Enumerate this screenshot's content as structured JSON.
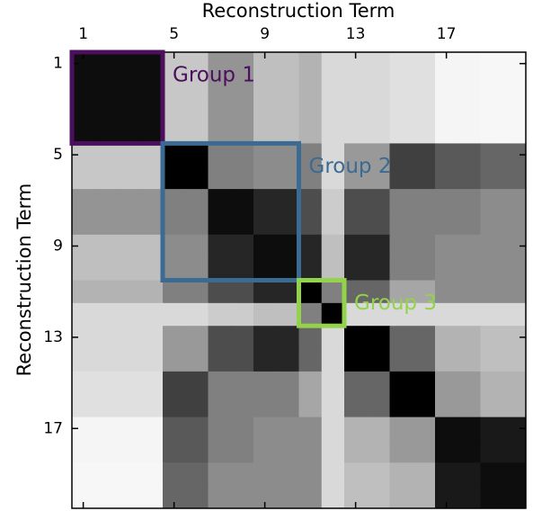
{
  "chart_data": {
    "type": "heatmap",
    "xlabel": "Reconstruction Term",
    "ylabel": "Reconstruction Term",
    "xlim": [
      0.5,
      20.5
    ],
    "ylim": [
      0.5,
      20.5
    ],
    "xticks": [
      1,
      5,
      9,
      13,
      17
    ],
    "yticks": [
      1,
      5,
      9,
      13,
      17
    ],
    "colormap": "gray_r",
    "groups": [
      {
        "label": "Group 1",
        "start": 1,
        "end": 4,
        "color": "#4b0f5e"
      },
      {
        "label": "Group 2",
        "start": 5,
        "end": 10,
        "color": "#3b6a92"
      },
      {
        "label": "Group 3",
        "start": 11,
        "end": 12,
        "color": "#93d34c"
      }
    ],
    "values": [
      [
        0.95,
        0.95,
        0.95,
        0.95,
        0.22,
        0.22,
        0.42,
        0.42,
        0.25,
        0.25,
        0.3,
        0.15,
        0.15,
        0.15,
        0.12,
        0.12,
        0.04,
        0.04,
        0.03,
        0.03
      ],
      [
        0.95,
        0.95,
        0.95,
        0.95,
        0.22,
        0.22,
        0.42,
        0.42,
        0.25,
        0.25,
        0.3,
        0.15,
        0.15,
        0.15,
        0.12,
        0.12,
        0.04,
        0.04,
        0.03,
        0.03
      ],
      [
        0.95,
        0.95,
        0.95,
        0.95,
        0.22,
        0.22,
        0.42,
        0.42,
        0.25,
        0.25,
        0.3,
        0.15,
        0.15,
        0.15,
        0.12,
        0.12,
        0.04,
        0.04,
        0.03,
        0.03
      ],
      [
        0.95,
        0.95,
        0.95,
        0.95,
        0.22,
        0.22,
        0.42,
        0.42,
        0.25,
        0.25,
        0.3,
        0.15,
        0.15,
        0.15,
        0.12,
        0.12,
        0.04,
        0.04,
        0.03,
        0.03
      ],
      [
        0.22,
        0.22,
        0.22,
        0.22,
        1,
        1,
        0.5,
        0.5,
        0.45,
        0.45,
        0.5,
        0.15,
        0.4,
        0.4,
        0.75,
        0.75,
        0.65,
        0.65,
        0.6,
        0.6
      ],
      [
        0.22,
        0.22,
        0.22,
        0.22,
        1,
        1,
        0.5,
        0.5,
        0.45,
        0.45,
        0.5,
        0.15,
        0.4,
        0.4,
        0.75,
        0.75,
        0.65,
        0.65,
        0.6,
        0.6
      ],
      [
        0.42,
        0.42,
        0.42,
        0.42,
        0.5,
        0.5,
        0.95,
        0.95,
        0.85,
        0.85,
        0.7,
        0.2,
        0.7,
        0.7,
        0.5,
        0.5,
        0.5,
        0.5,
        0.45,
        0.45
      ],
      [
        0.42,
        0.42,
        0.42,
        0.42,
        0.5,
        0.5,
        0.95,
        0.95,
        0.85,
        0.85,
        0.7,
        0.2,
        0.7,
        0.7,
        0.5,
        0.5,
        0.5,
        0.5,
        0.45,
        0.45
      ],
      [
        0.25,
        0.25,
        0.25,
        0.25,
        0.45,
        0.45,
        0.85,
        0.85,
        0.95,
        0.95,
        0.85,
        0.25,
        0.85,
        0.85,
        0.5,
        0.5,
        0.45,
        0.45,
        0.45,
        0.45
      ],
      [
        0.25,
        0.25,
        0.25,
        0.25,
        0.45,
        0.45,
        0.85,
        0.85,
        0.95,
        0.95,
        0.85,
        0.25,
        0.85,
        0.85,
        0.5,
        0.5,
        0.45,
        0.45,
        0.45,
        0.45
      ],
      [
        0.3,
        0.3,
        0.3,
        0.3,
        0.5,
        0.5,
        0.7,
        0.7,
        0.85,
        0.85,
        1,
        0.5,
        0.6,
        0.6,
        0.35,
        0.35,
        0.45,
        0.45,
        0.45,
        0.45
      ],
      [
        0.15,
        0.15,
        0.15,
        0.15,
        0.15,
        0.15,
        0.2,
        0.2,
        0.25,
        0.25,
        0.5,
        1,
        0.15,
        0.15,
        0.15,
        0.15,
        0.15,
        0.15,
        0.15,
        0.15
      ],
      [
        0.15,
        0.15,
        0.15,
        0.15,
        0.4,
        0.4,
        0.7,
        0.7,
        0.85,
        0.85,
        0.6,
        0.15,
        1,
        1,
        0.6,
        0.6,
        0.3,
        0.3,
        0.25,
        0.25
      ],
      [
        0.15,
        0.15,
        0.15,
        0.15,
        0.4,
        0.4,
        0.7,
        0.7,
        0.85,
        0.85,
        0.6,
        0.15,
        1,
        1,
        0.6,
        0.6,
        0.3,
        0.3,
        0.25,
        0.25
      ],
      [
        0.12,
        0.12,
        0.12,
        0.12,
        0.75,
        0.75,
        0.5,
        0.5,
        0.5,
        0.5,
        0.35,
        0.15,
        0.6,
        0.6,
        1,
        1,
        0.4,
        0.4,
        0.3,
        0.3
      ],
      [
        0.12,
        0.12,
        0.12,
        0.12,
        0.75,
        0.75,
        0.5,
        0.5,
        0.5,
        0.5,
        0.35,
        0.15,
        0.6,
        0.6,
        1,
        1,
        0.4,
        0.4,
        0.3,
        0.3
      ],
      [
        0.04,
        0.04,
        0.04,
        0.04,
        0.65,
        0.65,
        0.5,
        0.5,
        0.45,
        0.45,
        0.45,
        0.15,
        0.3,
        0.3,
        0.4,
        0.4,
        0.95,
        0.95,
        0.9,
        0.9
      ],
      [
        0.04,
        0.04,
        0.04,
        0.04,
        0.65,
        0.65,
        0.5,
        0.5,
        0.45,
        0.45,
        0.45,
        0.15,
        0.3,
        0.3,
        0.4,
        0.4,
        0.95,
        0.95,
        0.9,
        0.9
      ],
      [
        0.03,
        0.03,
        0.03,
        0.03,
        0.6,
        0.6,
        0.45,
        0.45,
        0.45,
        0.45,
        0.45,
        0.15,
        0.25,
        0.25,
        0.3,
        0.3,
        0.9,
        0.9,
        0.95,
        0.95
      ],
      [
        0.03,
        0.03,
        0.03,
        0.03,
        0.6,
        0.6,
        0.45,
        0.45,
        0.45,
        0.45,
        0.45,
        0.15,
        0.25,
        0.25,
        0.3,
        0.3,
        0.9,
        0.9,
        0.95,
        0.95
      ]
    ]
  }
}
